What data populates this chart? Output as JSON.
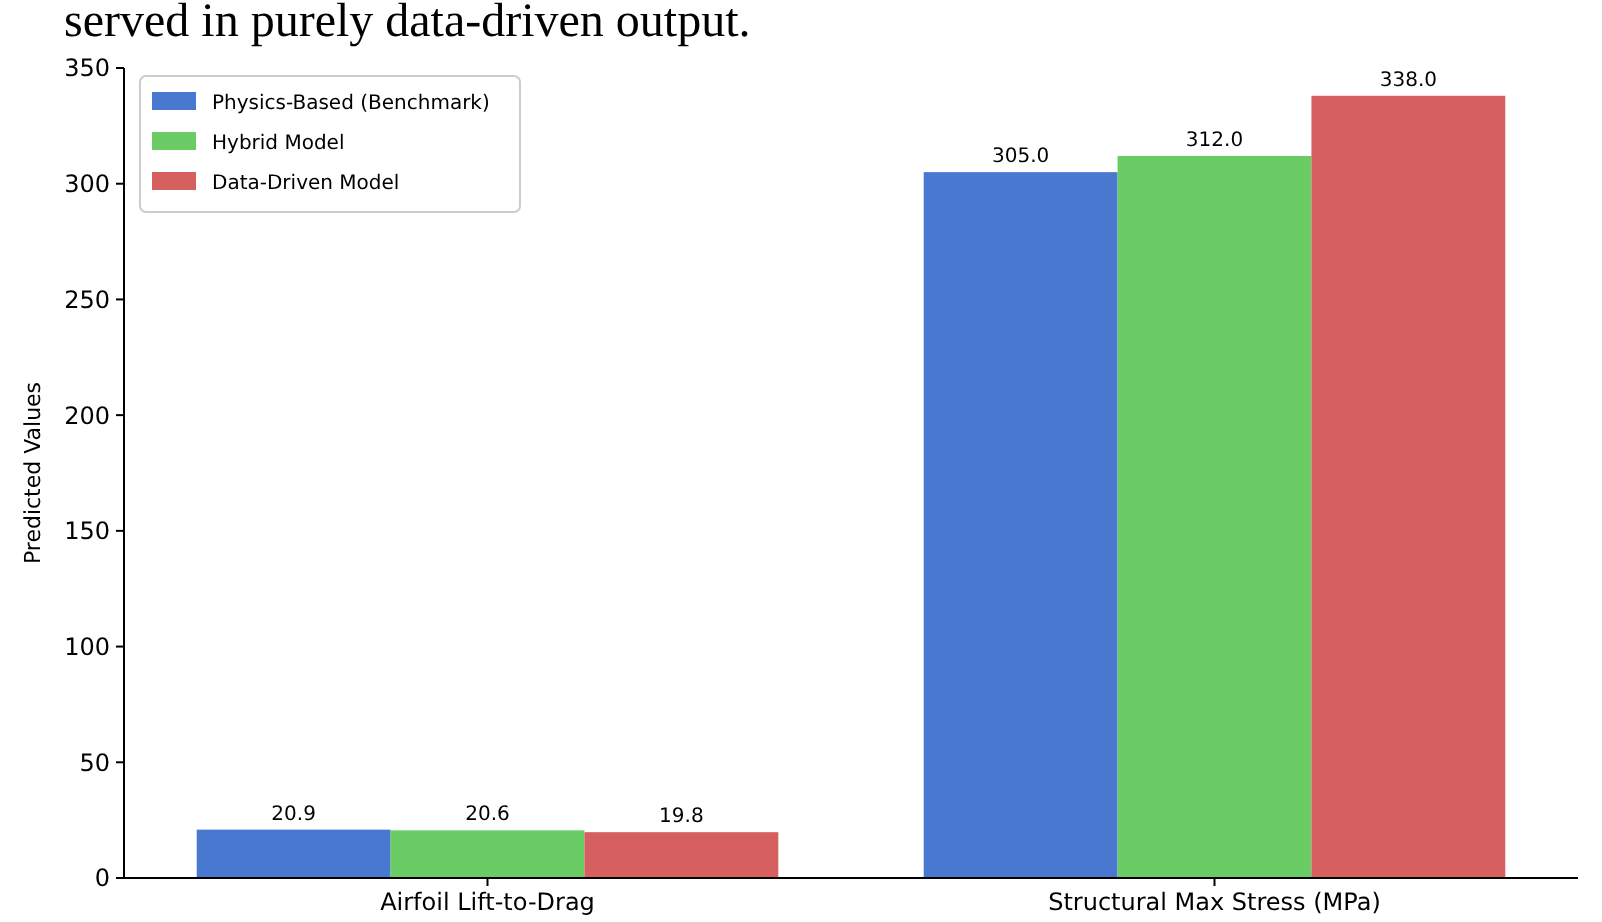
{
  "chart_data": {
    "type": "bar",
    "ylabel": "Predicted Values",
    "annotations": [
      "served in purely data-driven output."
    ],
    "categories": [
      "Airfoil Lift-to-Drag",
      "Structural Max Stress (MPa)"
    ],
    "series": [
      {
        "name": "Physics-Based (Benchmark)",
        "color": "#4878cf",
        "values": [
          20.9,
          305.0
        ],
        "value_labels": [
          "20.9",
          "305.0"
        ]
      },
      {
        "name": "Hybrid Model",
        "color": "#6acc65",
        "values": [
          20.6,
          312.0
        ],
        "value_labels": [
          "20.6",
          "312.0"
        ]
      },
      {
        "name": "Data-Driven Model",
        "color": "#d65f5f",
        "values": [
          19.8,
          338.0
        ],
        "value_labels": [
          "19.8",
          "338.0"
        ]
      }
    ],
    "ylim": [
      0,
      350
    ],
    "yticks": [
      0,
      50,
      100,
      150,
      200,
      250,
      300,
      350
    ],
    "grid": false,
    "legend": "top left"
  }
}
